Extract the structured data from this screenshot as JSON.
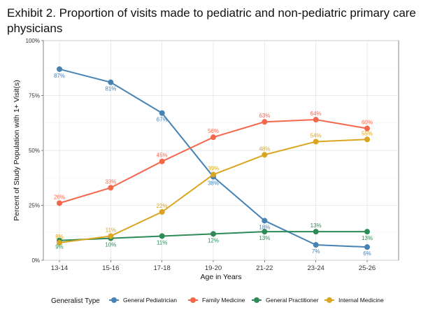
{
  "chart_data": {
    "type": "line",
    "title": "Exhibit 2. Proportion of visits made to pediatric and non-pediatric primary care physicians",
    "xlabel": "Age in Years",
    "ylabel": "Percent of Study Population with 1+ Visit(s)",
    "categories": [
      "13-14",
      "15-16",
      "17-18",
      "19-20",
      "21-22",
      "23-24",
      "25-26"
    ],
    "ylim": [
      0,
      100
    ],
    "yticks": [
      0,
      25,
      50,
      75,
      100
    ],
    "ytick_labels": [
      "0%",
      "25%",
      "50%",
      "75%",
      "100%"
    ],
    "grid": true,
    "legend": {
      "title": "Generalist Type",
      "position": "bottom"
    },
    "series": [
      {
        "name": "General Pediatrician",
        "color": "#4682b4",
        "values": [
          87,
          81,
          67,
          38,
          18,
          7,
          6
        ],
        "labels": [
          "87%",
          "81%",
          "67%",
          "38%",
          "18%",
          "7%",
          "6%"
        ],
        "label_pos": [
          "below",
          "below",
          "below",
          "below",
          "below",
          "below",
          "below"
        ]
      },
      {
        "name": "Family Medicine",
        "color": "#f4674b",
        "values": [
          26,
          33,
          45,
          56,
          63,
          64,
          60
        ],
        "labels": [
          "26%",
          "33%",
          "45%",
          "56%",
          "63%",
          "64%",
          "60%"
        ],
        "label_pos": [
          "above",
          "above",
          "above",
          "above",
          "above",
          "above",
          "above"
        ]
      },
      {
        "name": "General Practitioner",
        "color": "#2e8b57",
        "values": [
          9,
          10,
          11,
          12,
          13,
          13,
          13
        ],
        "labels": [
          "9%",
          "10%",
          "11%",
          "12%",
          "13%",
          "13%",
          "13%"
        ],
        "label_pos": [
          "below",
          "below",
          "below",
          "below",
          "below",
          "above",
          "below"
        ]
      },
      {
        "name": "Internal Medicine",
        "color": "#daa520",
        "values": [
          8,
          11,
          22,
          39,
          48,
          54,
          55
        ],
        "labels": [
          "8%",
          "11%",
          "22%",
          "39%",
          "48%",
          "54%",
          "55%"
        ],
        "label_pos": [
          "above",
          "above",
          "above",
          "above",
          "above",
          "above",
          "above"
        ]
      }
    ]
  }
}
